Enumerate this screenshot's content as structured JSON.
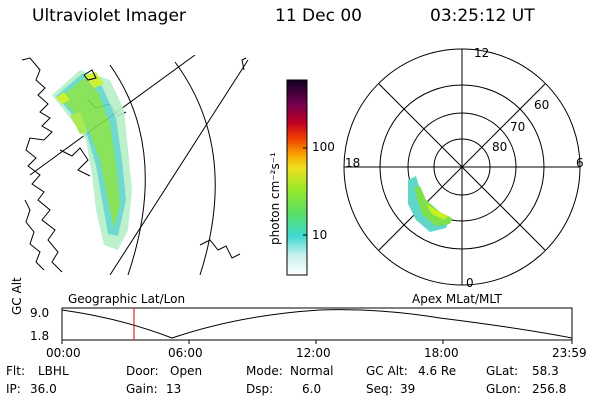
{
  "header": {
    "title": "Ultraviolet Imager",
    "date": "11 Dec 00",
    "time": "03:25:12 UT"
  },
  "panels": {
    "geographic_label": "Geographic Lat/Lon",
    "apex_label": "Apex MLat/MLT"
  },
  "colorbar": {
    "unit_label": "photon cm⁻²s⁻¹",
    "ticks": [
      "100",
      "10"
    ],
    "scale": "log"
  },
  "polar_plot": {
    "mlt_labels": [
      "12",
      "18",
      "6",
      "0"
    ],
    "lat_labels": [
      "60",
      "70",
      "80"
    ]
  },
  "timeline": {
    "axis_label": "GC Alt",
    "y_ticks": [
      "9.0",
      "1.8"
    ],
    "x_ticks": [
      "00:00",
      "06:00",
      "12:00",
      "18:00",
      "23:59"
    ],
    "current_marker_time": "03:25"
  },
  "info": {
    "row1": [
      {
        "label": "Flt:",
        "value": "LBHL"
      },
      {
        "label": "Door:",
        "value": "Open"
      },
      {
        "label": "Mode:",
        "value": "Normal"
      },
      {
        "label": "GC Alt:",
        "value": "4.6 Re"
      },
      {
        "label": "GLat:",
        "value": "58.3"
      }
    ],
    "row2": [
      {
        "label": "IP:",
        "value": "36.0"
      },
      {
        "label": "Gain:",
        "value": "13"
      },
      {
        "label": "Dsp:",
        "value": "6.0"
      },
      {
        "label": "Seq:",
        "value": "39"
      },
      {
        "label": "GLon:",
        "value": "256.8"
      }
    ]
  },
  "colors": {
    "marker": "#d00000",
    "aurora_main": "#7ee04a",
    "aurora_edge": "#56d8d0"
  }
}
